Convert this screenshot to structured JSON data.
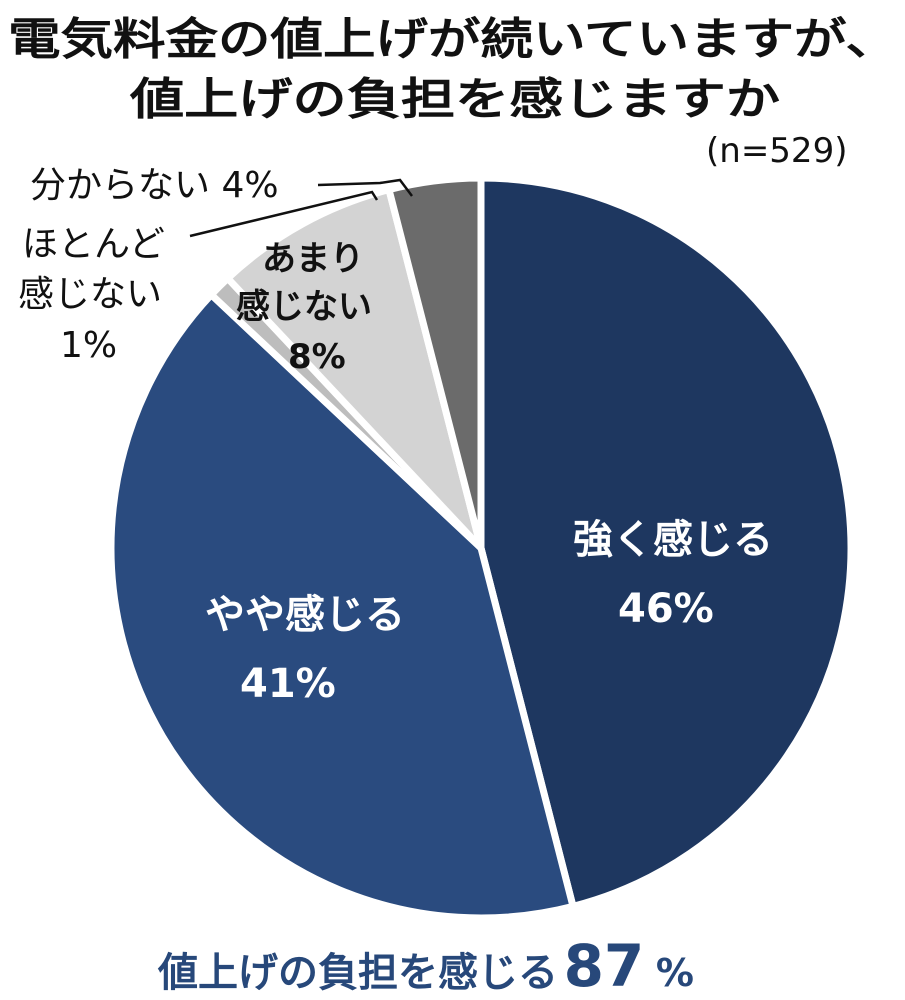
{
  "title_lines": [
    "電気料金の値上げが続いていますが、",
    "値上げの負担を感じますか"
  ],
  "sample_size": "(n=529)",
  "chart_data": {
    "type": "pie",
    "slices": [
      {
        "label": "強く感じる",
        "value": 46,
        "value_text": "46%",
        "color": "#1e3760"
      },
      {
        "label": "やや感じる",
        "value": 41,
        "value_text": "41%",
        "color": "#2a4b7f"
      },
      {
        "label": "ほとんど感じない",
        "value": 1,
        "value_text": "1%",
        "color": "#bdbdbd"
      },
      {
        "label": "あまり感じない",
        "value": 8,
        "value_text": "8%",
        "color": "#d3d3d3"
      },
      {
        "label": "分からない",
        "value": 4,
        "value_text": "4%",
        "color": "#6b6b6b"
      }
    ]
  },
  "labels": {
    "strong": {
      "line1": "強く感じる",
      "line2": "46%"
    },
    "somewhat": {
      "line1": "やや感じる",
      "line2": "41%"
    },
    "not_much": {
      "line1": "あまり",
      "line2": "感じない",
      "line3": "8%"
    },
    "hardly": {
      "line1": "ほとんど",
      "line2": "感じない",
      "line3": "1%"
    },
    "dont_know": {
      "line1": "分からない 4%"
    }
  },
  "summary": {
    "text": "値上げの負担を感じる",
    "number": "87",
    "unit": "%"
  }
}
